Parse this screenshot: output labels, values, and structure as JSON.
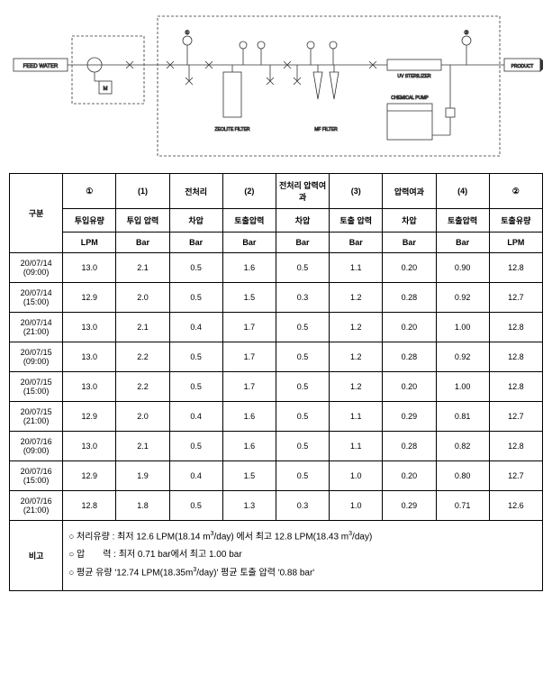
{
  "diagram": {
    "feed_water": "FEED WATER",
    "product": "PRODUCT",
    "zeolite": "ZEOLITE FILTER",
    "mf": "MF FILTER",
    "uv": "UV STERILIZER",
    "chem_pump": "CHEMICAL PUMP",
    "m": "M",
    "stroke": "#333333",
    "font_size": 6
  },
  "headers": {
    "r1": [
      "①",
      "(1)",
      "전처리",
      "(2)",
      "전처리 압력여과",
      "(3)",
      "압력여과",
      "(4)",
      "②"
    ],
    "r2": [
      "구분",
      "투입유량",
      "투입 압력",
      "차압",
      "토출압력",
      "차압",
      "토출 압력",
      "차압",
      "토출압력",
      "토출유량"
    ],
    "r3": [
      "LPM",
      "Bar",
      "Bar",
      "Bar",
      "Bar",
      "Bar",
      "Bar",
      "Bar",
      "LPM"
    ]
  },
  "rows": [
    {
      "t": "20/07/14\n(09:00)",
      "c": [
        "13.0",
        "2.1",
        "0.5",
        "1.6",
        "0.5",
        "1.1",
        "0.20",
        "0.90",
        "12.8"
      ]
    },
    {
      "t": "20/07/14\n(15:00)",
      "c": [
        "12.9",
        "2.0",
        "0.5",
        "1.5",
        "0.3",
        "1.2",
        "0.28",
        "0.92",
        "12.7"
      ]
    },
    {
      "t": "20/07/14\n(21:00)",
      "c": [
        "13.0",
        "2.1",
        "0.4",
        "1.7",
        "0.5",
        "1.2",
        "0.20",
        "1.00",
        "12.8"
      ]
    },
    {
      "t": "20/07/15\n(09:00)",
      "c": [
        "13.0",
        "2.2",
        "0.5",
        "1.7",
        "0.5",
        "1.2",
        "0.28",
        "0.92",
        "12.8"
      ]
    },
    {
      "t": "20/07/15\n(15:00)",
      "c": [
        "13.0",
        "2.2",
        "0.5",
        "1.7",
        "0.5",
        "1.2",
        "0.20",
        "1.00",
        "12.8"
      ]
    },
    {
      "t": "20/07/15\n(21:00)",
      "c": [
        "12.9",
        "2.0",
        "0.4",
        "1.6",
        "0.5",
        "1.1",
        "0.29",
        "0.81",
        "12.7"
      ]
    },
    {
      "t": "20/07/16\n(09:00)",
      "c": [
        "13.0",
        "2.1",
        "0.5",
        "1.6",
        "0.5",
        "1.1",
        "0.28",
        "0.82",
        "12.8"
      ]
    },
    {
      "t": "20/07/16\n(15:00)",
      "c": [
        "12.9",
        "1.9",
        "0.4",
        "1.5",
        "0.5",
        "1.0",
        "0.20",
        "0.80",
        "12.7"
      ]
    },
    {
      "t": "20/07/16\n(21:00)",
      "c": [
        "12.8",
        "1.8",
        "0.5",
        "1.3",
        "0.3",
        "1.0",
        "0.29",
        "0.71",
        "12.6"
      ]
    }
  ],
  "bigo_label": "비고",
  "bigo_lines": [
    "○ 처리유량 : 최저 12.6 LPM(18.14 m³/day) 에서 최고 12.8 LPM(18.43 m³/day)",
    "○ 압　　력 : 최저 0.71 bar에서 최고 1.00 bar",
    "○ 평균 유량 '12.74 LPM(18.35m³/day)' 평균 토출 압력 '0.88 bar'"
  ]
}
